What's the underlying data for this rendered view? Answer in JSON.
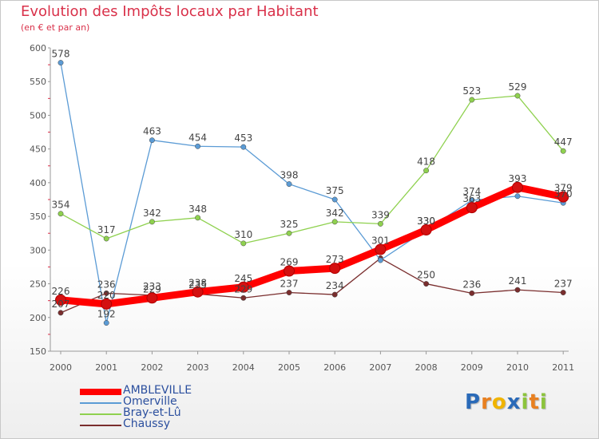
{
  "header": {
    "title": "Evolution des Impôts locaux par Habitant",
    "subtitle": "(en € et par an)"
  },
  "logo": {
    "text": "Proxiti",
    "colors": [
      "#2a6ab8",
      "#e88020",
      "#f0b400",
      "#2a6ab8",
      "#8cc43c",
      "#e88020",
      "#8cc43c"
    ]
  },
  "chart_data": {
    "type": "line",
    "title": "Evolution des Impôts locaux par Habitant",
    "subtitle": "(en € et par an)",
    "xlabel": "",
    "ylabel": "",
    "x": [
      "2000",
      "2001",
      "2002",
      "2003",
      "2004",
      "2005",
      "2006",
      "2007",
      "2008",
      "2009",
      "2010",
      "2011"
    ],
    "ylim": [
      150,
      600
    ],
    "yticks": [
      150,
      200,
      250,
      300,
      350,
      400,
      450,
      500,
      550,
      600
    ],
    "grid": false,
    "legend": "bottom-left",
    "series": [
      {
        "name": "AMBLEVILLE",
        "color": "#ff0000",
        "values": [
          226,
          220,
          229,
          238,
          245,
          269,
          273,
          301,
          330,
          363,
          393,
          379
        ],
        "labels": [
          "226",
          "220",
          "229",
          "238",
          "245",
          "269",
          "273",
          "301",
          "330",
          "363",
          "393",
          "379"
        ]
      },
      {
        "name": "Omerville",
        "color": "#5b9bd5",
        "values": [
          578,
          192,
          463,
          454,
          453,
          398,
          375,
          285,
          330,
          374,
          380,
          370
        ],
        "labels": [
          "578",
          "192",
          "463",
          "454",
          "453",
          "398",
          "375",
          "",
          "330",
          "374",
          "",
          "370"
        ]
      },
      {
        "name": "Bray-et-Lû",
        "color": "#8fd14f",
        "values": [
          354,
          317,
          342,
          348,
          310,
          325,
          342,
          339,
          418,
          523,
          529,
          447
        ],
        "labels": [
          "354",
          "317",
          "342",
          "348",
          "310",
          "325",
          "342",
          "339",
          "418",
          "523",
          "529",
          "447"
        ]
      },
      {
        "name": "Chaussy",
        "color": "#7a2e2e",
        "values": [
          207,
          236,
          233,
          235,
          229,
          237,
          234,
          288,
          250,
          236,
          241,
          237
        ],
        "labels": [
          "207",
          "236",
          "233",
          "235",
          "229",
          "237",
          "234",
          "",
          "250",
          "236",
          "241",
          "237"
        ]
      }
    ]
  }
}
